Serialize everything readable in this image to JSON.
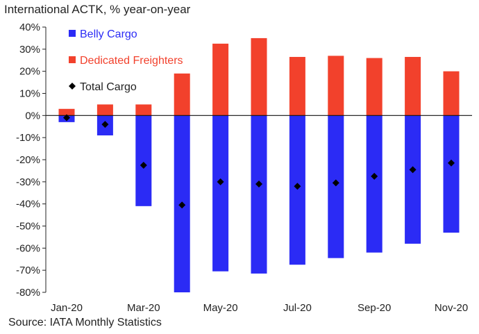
{
  "chart_data": {
    "type": "bar",
    "title": "International ACTK, % year-on-year",
    "source": "Source: IATA Monthly Statistics",
    "categories": [
      "Jan-20",
      "Feb-20",
      "Mar-20",
      "Apr-20",
      "May-20",
      "Jun-20",
      "Jul-20",
      "Aug-20",
      "Sep-20",
      "Oct-20",
      "Nov-20"
    ],
    "x_tick_labels": [
      "Jan-20",
      "Mar-20",
      "May-20",
      "Jul-20",
      "Sep-20",
      "Nov-20"
    ],
    "ylim": [
      -80,
      40
    ],
    "y_ticks": [
      40,
      30,
      20,
      10,
      0,
      -10,
      -20,
      -30,
      -40,
      -50,
      -60,
      -70,
      -80
    ],
    "y_tick_format": "percent",
    "series": [
      {
        "name": "Belly Cargo",
        "type": "bar",
        "color": "#2b2bf5",
        "values": [
          -3,
          -9,
          -41,
          -80,
          -70.5,
          -71.5,
          -67.5,
          -64.5,
          -62,
          -58,
          -53
        ]
      },
      {
        "name": "Dedicated Freighters",
        "type": "bar",
        "color": "#f2412c",
        "values": [
          3,
          5,
          5,
          19,
          32.5,
          35,
          26.5,
          27,
          26,
          26.5,
          20
        ]
      },
      {
        "name": "Total Cargo",
        "type": "marker",
        "color": "#000000",
        "values": [
          -1,
          -4,
          -22.5,
          -40.5,
          -30,
          -31,
          -32,
          -30.5,
          -27.5,
          -24.5,
          -21.5
        ]
      }
    ],
    "legend": {
      "position": "top-left",
      "items": [
        "Belly Cargo",
        "Dedicated Freighters",
        "Total Cargo"
      ]
    }
  }
}
